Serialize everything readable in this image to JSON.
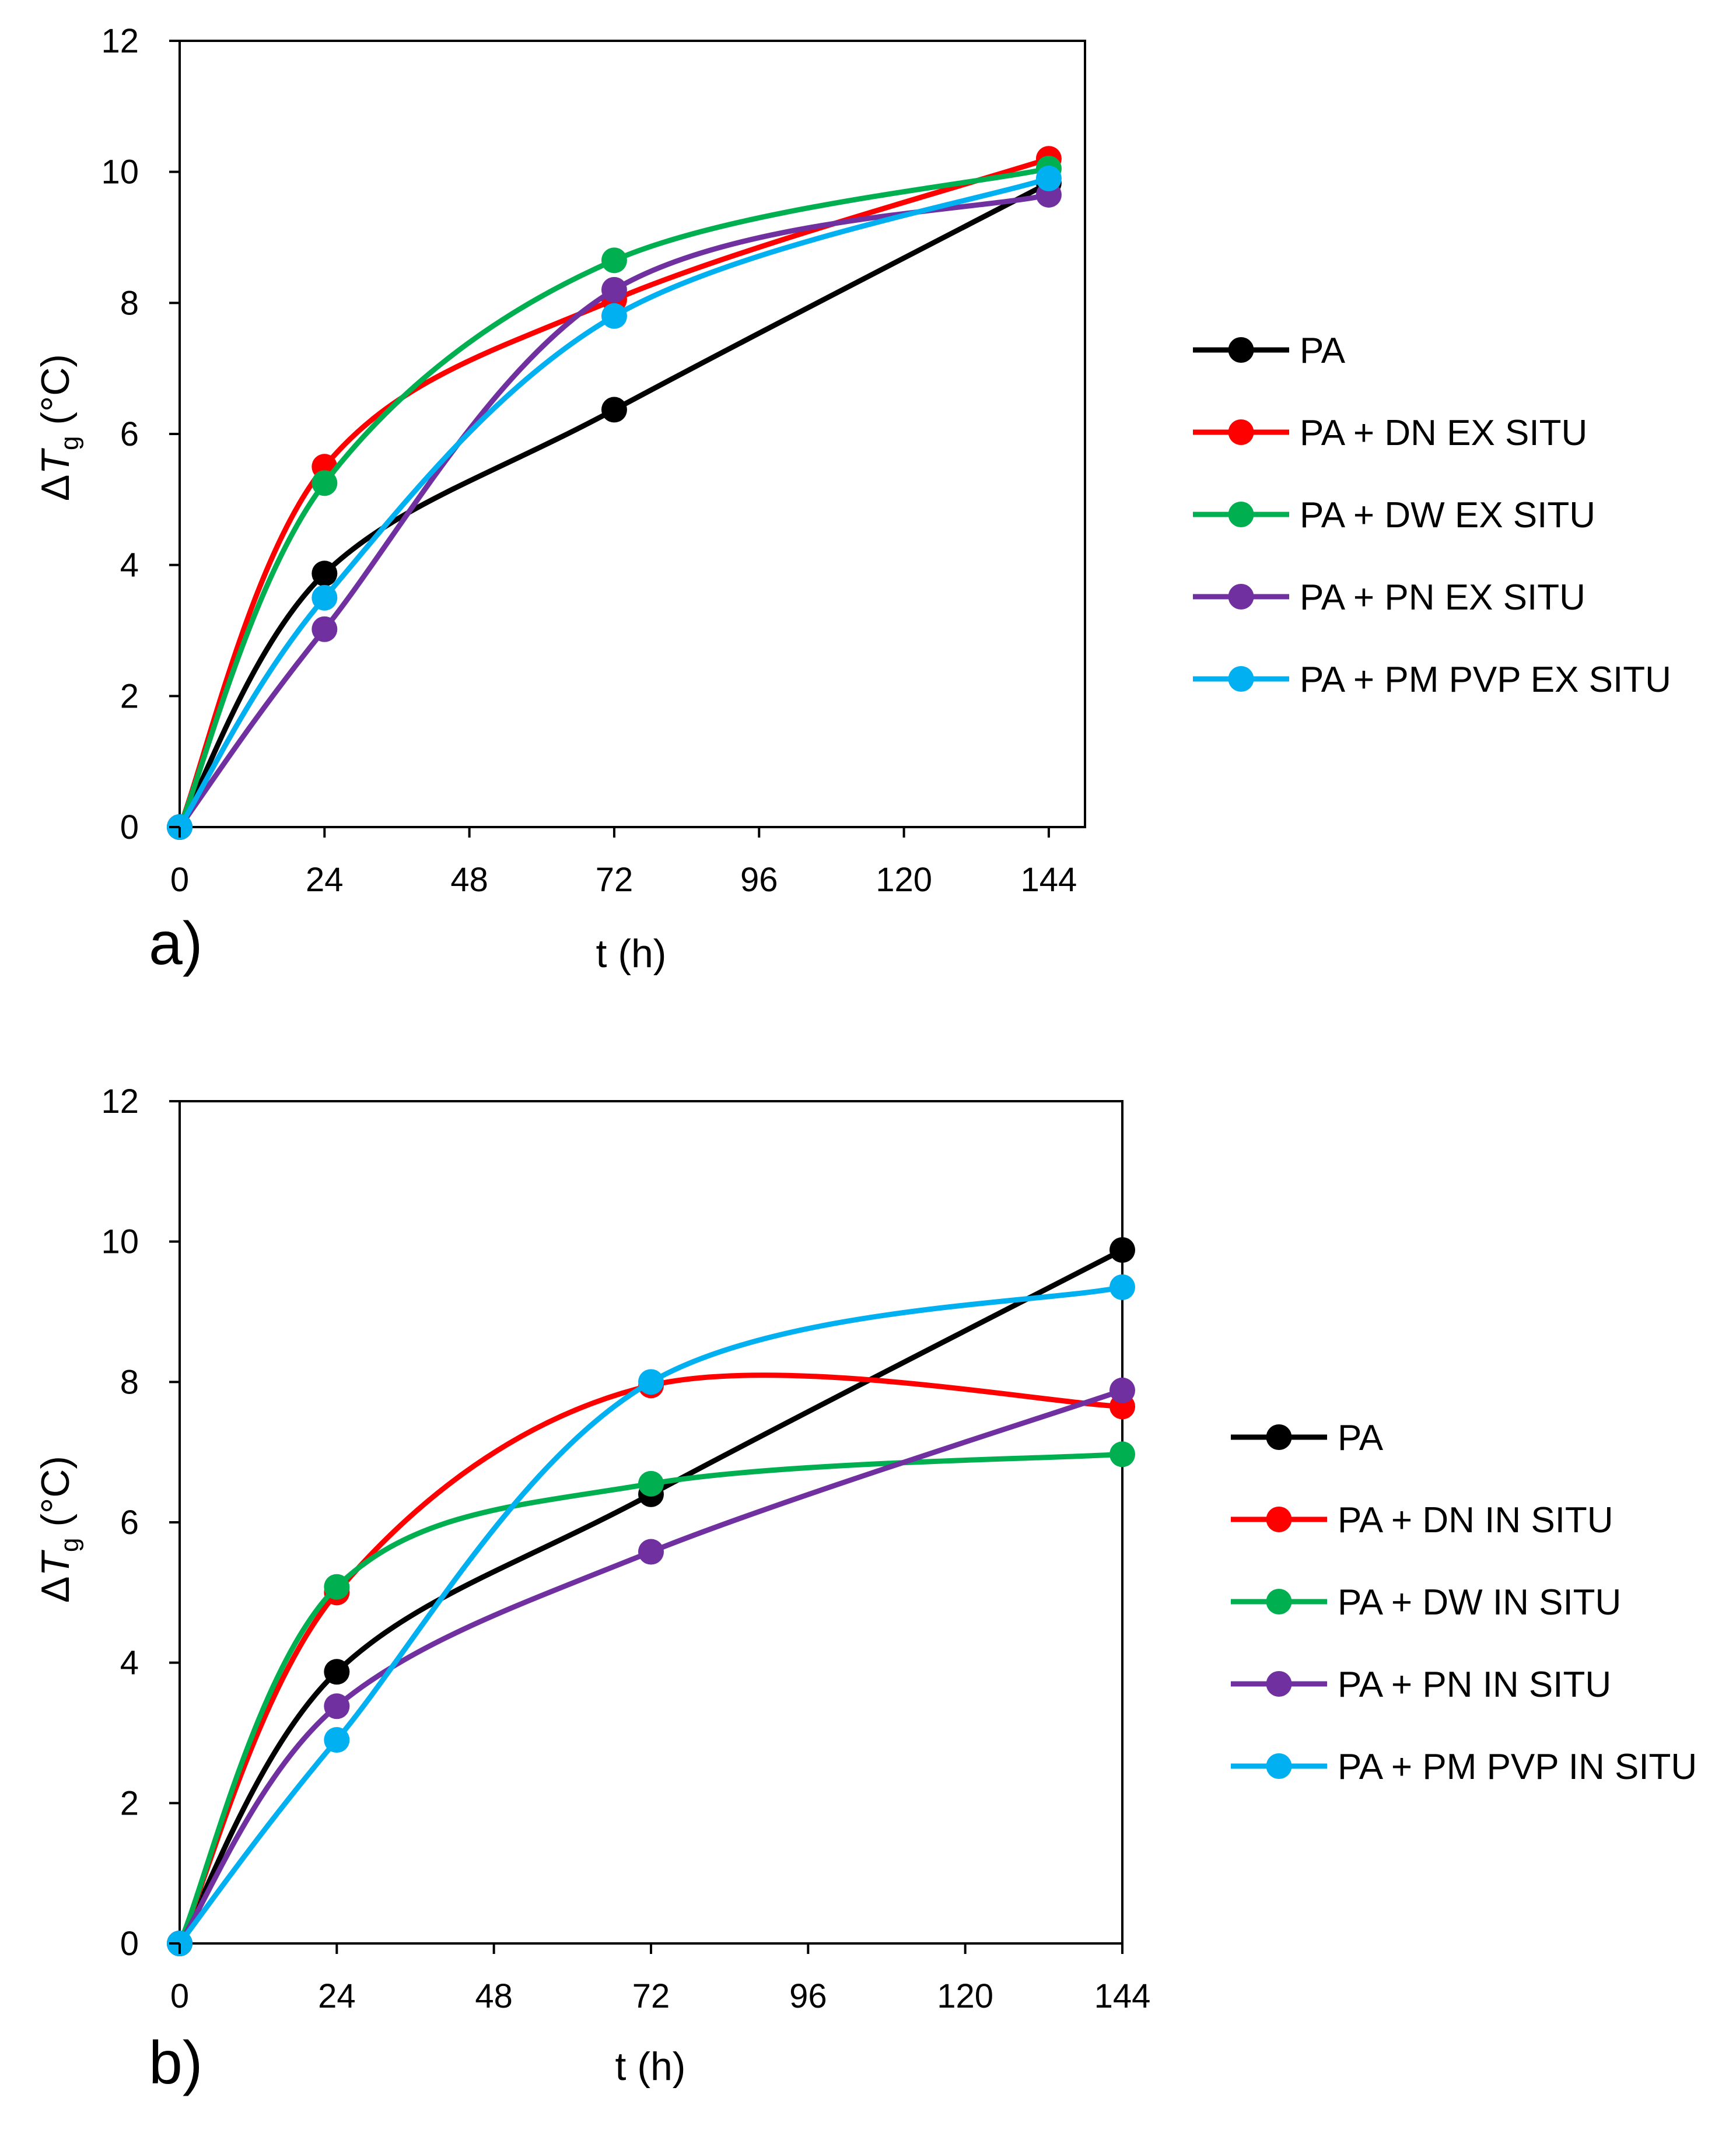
{
  "chart_data": [
    {
      "type": "line",
      "panel_label": "a)",
      "xlabel": "t (h)",
      "ylabel_symbol": "Δ",
      "ylabel_var": "T",
      "ylabel_sub": "g",
      "ylabel_unit": " (°C)",
      "xlim": [
        0,
        150
      ],
      "ylim": [
        0,
        12
      ],
      "xticks": [
        0,
        24,
        48,
        72,
        96,
        120,
        144
      ],
      "yticks": [
        0,
        2,
        4,
        6,
        8,
        10,
        12
      ],
      "x": [
        0,
        24,
        72,
        144
      ],
      "legend_position": "right",
      "series": [
        {
          "name": "PA",
          "color": "#000000",
          "values": [
            0,
            3.87,
            6.37,
            9.83
          ]
        },
        {
          "name": "PA + DN EX SITU",
          "color": "#ff0000",
          "values": [
            0,
            5.5,
            8.05,
            10.2
          ]
        },
        {
          "name": "PA + DW EX SITU",
          "color": "#00b050",
          "values": [
            0,
            5.25,
            8.65,
            10.05
          ]
        },
        {
          "name": "PA + PN EX SITU",
          "color": "#7030a0",
          "values": [
            0,
            3.02,
            8.2,
            9.65
          ]
        },
        {
          "name": "PA + PM PVP EX SITU",
          "color": "#00b0f0",
          "values": [
            0,
            3.5,
            7.8,
            9.9
          ]
        }
      ]
    },
    {
      "type": "line",
      "panel_label": "b)",
      "xlabel": "t (h)",
      "ylabel_symbol": "Δ",
      "ylabel_var": "T",
      "ylabel_sub": "g",
      "ylabel_unit": " (°C)",
      "xlim": [
        0,
        144
      ],
      "ylim": [
        0,
        12
      ],
      "xticks": [
        0,
        24,
        48,
        72,
        96,
        120,
        144
      ],
      "yticks": [
        0,
        2,
        4,
        6,
        8,
        10,
        12
      ],
      "x": [
        0,
        24,
        72,
        144
      ],
      "legend_position": "right",
      "series": [
        {
          "name": "PA",
          "color": "#000000",
          "values": [
            0,
            3.87,
            6.4,
            9.88
          ]
        },
        {
          "name": "PA + DN IN SITU",
          "color": "#ff0000",
          "values": [
            0,
            5.0,
            7.95,
            7.65
          ]
        },
        {
          "name": "PA + DW IN SITU",
          "color": "#00b050",
          "values": [
            0,
            5.08,
            6.55,
            6.97
          ]
        },
        {
          "name": "PA + PN IN SITU",
          "color": "#7030a0",
          "values": [
            0,
            3.38,
            5.58,
            7.88
          ]
        },
        {
          "name": "PA + PM PVP IN SITU",
          "color": "#00b0f0",
          "values": [
            0,
            2.9,
            8.0,
            9.35
          ]
        }
      ]
    }
  ]
}
